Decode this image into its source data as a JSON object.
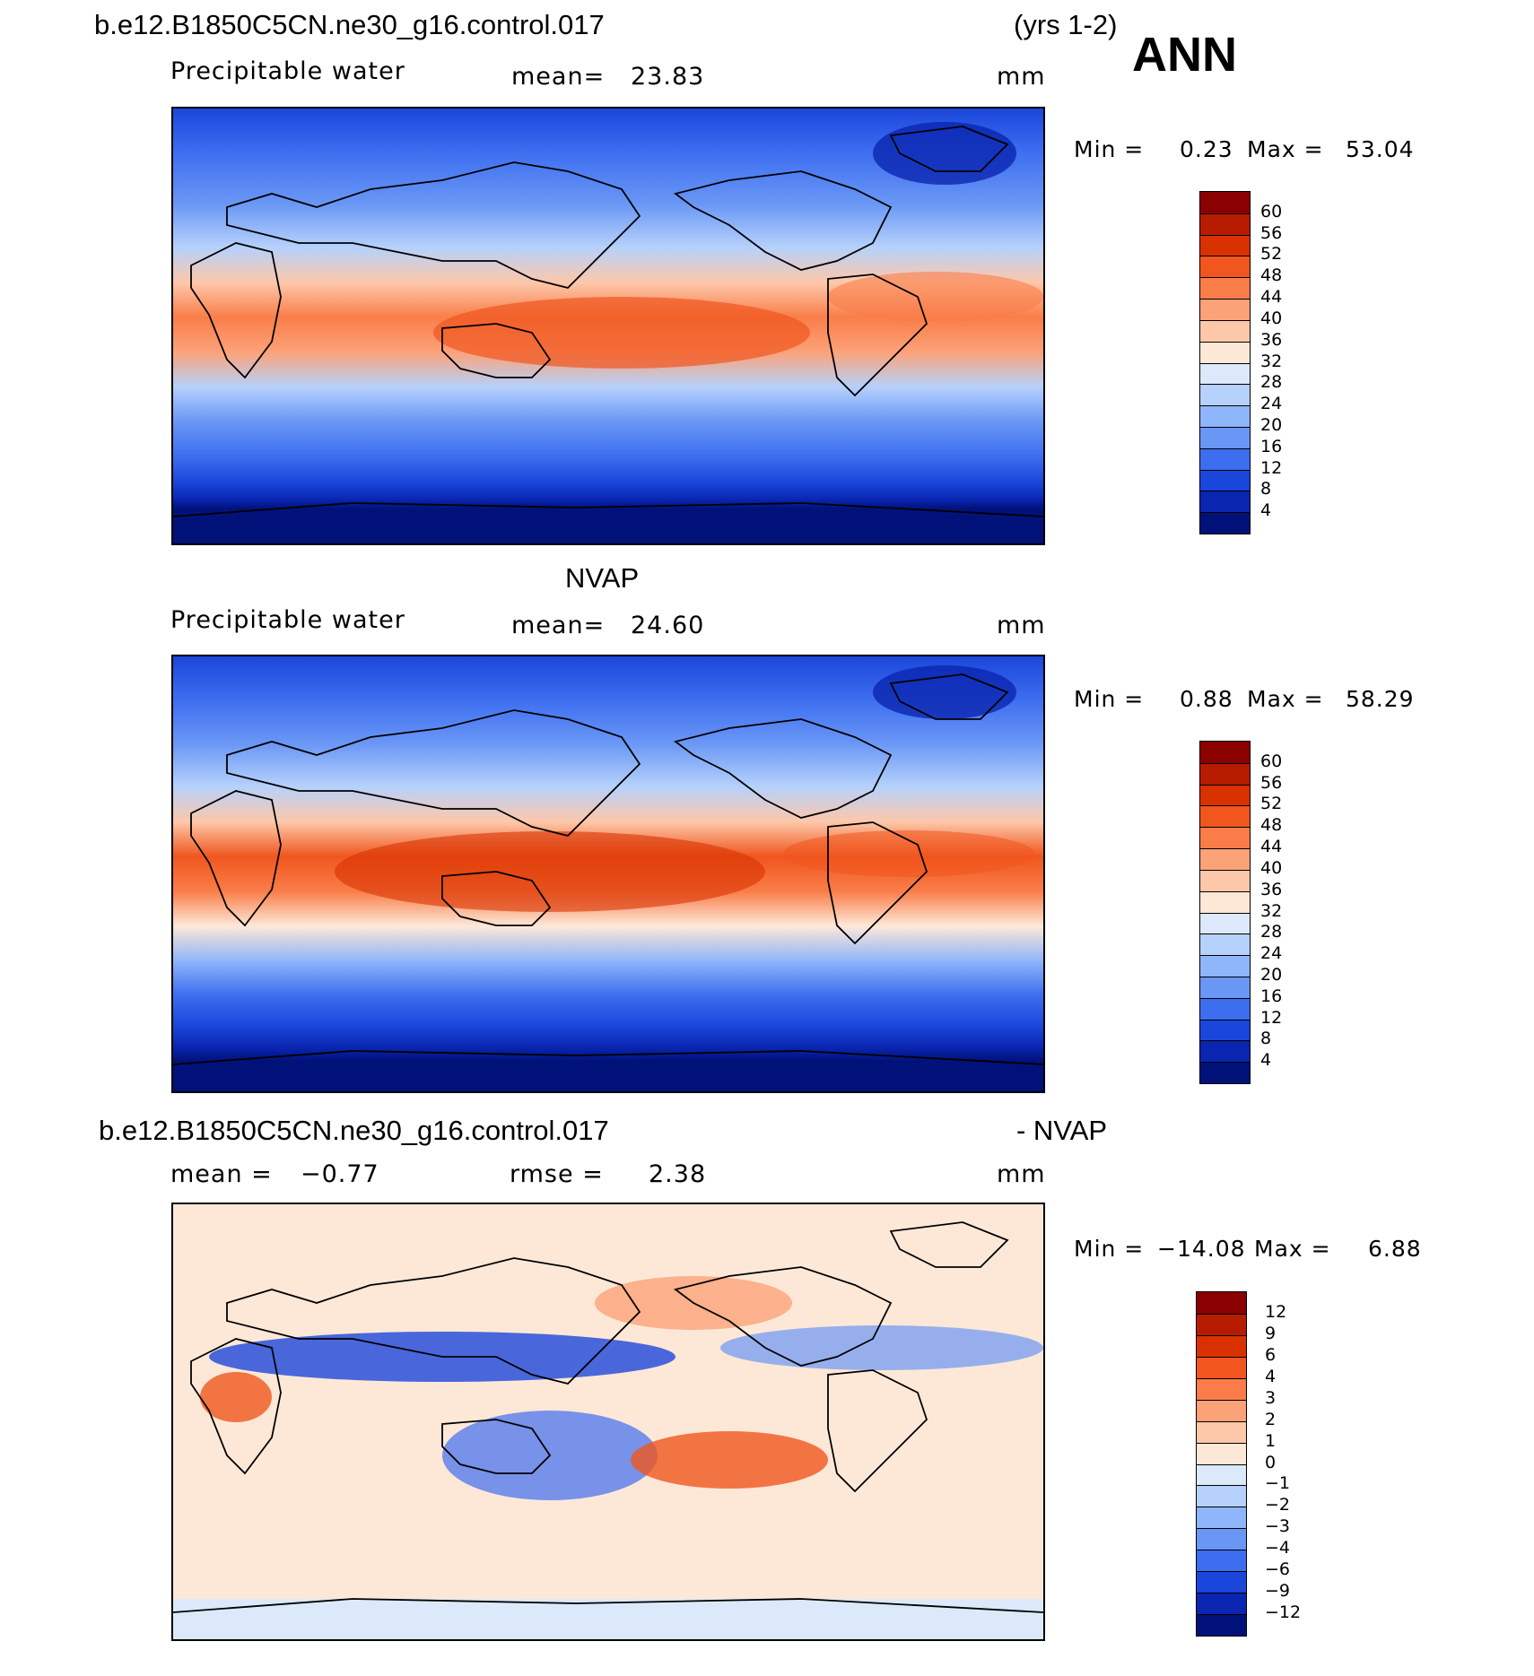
{
  "header": {
    "case_name": "b.e12.B1850C5CN.ne30_g16.control.017",
    "years": "(yrs 1-2)",
    "season": "ANN"
  },
  "panels": [
    {
      "id": "model",
      "title": "",
      "variable": "Precipitable water",
      "mean_label": "mean=",
      "mean_value": "23.83",
      "units": "mm",
      "min_label": "Min =",
      "min_value": "0.23",
      "max_label": "Max =",
      "max_value": "53.04"
    },
    {
      "id": "obs",
      "title": "NVAP",
      "variable": "Precipitable water",
      "mean_label": "mean=",
      "mean_value": "24.60",
      "units": "mm",
      "min_label": "Min =",
      "min_value": "0.88",
      "max_label": "Max =",
      "max_value": "58.29"
    },
    {
      "id": "diff",
      "title_left": "b.e12.B1850C5CN.ne30_g16.control.017",
      "title_right": "- NVAP",
      "mean_label": "mean =",
      "mean_value": "−0.77",
      "rmse_label": "rmse =",
      "rmse_value": "2.38",
      "units": "mm",
      "min_label": "Min =",
      "min_value": "−14.08",
      "max_label": "Max =",
      "max_value": "6.88"
    }
  ],
  "colorbars": {
    "absolute": {
      "labels": [
        "60",
        "56",
        "52",
        "48",
        "44",
        "40",
        "36",
        "32",
        "28",
        "24",
        "20",
        "16",
        "12",
        "8",
        "4"
      ],
      "colors": [
        "#8b0000",
        "#b81c00",
        "#d93200",
        "#f0561e",
        "#fa7d49",
        "#fca279",
        "#fdc8aa",
        "#fde8d8",
        "#dbe9fb",
        "#b6d1fb",
        "#8fb5fa",
        "#6a97f5",
        "#3d6ef0",
        "#1b46db",
        "#0a25b0",
        "#00127a"
      ]
    },
    "difference": {
      "labels": [
        "12",
        "9",
        "6",
        "4",
        "3",
        "2",
        "1",
        "0",
        "−1",
        "−2",
        "−3",
        "−4",
        "−6",
        "−9",
        "−12"
      ],
      "colors": [
        "#8b0000",
        "#b81c00",
        "#d93200",
        "#f0561e",
        "#fa7d49",
        "#fca279",
        "#fdc8aa",
        "#fde8d8",
        "#dbe9fb",
        "#b6d1fb",
        "#8fb5fa",
        "#6a97f5",
        "#3d6ef0",
        "#1b46db",
        "#0a25b0",
        "#00127a"
      ]
    }
  }
}
